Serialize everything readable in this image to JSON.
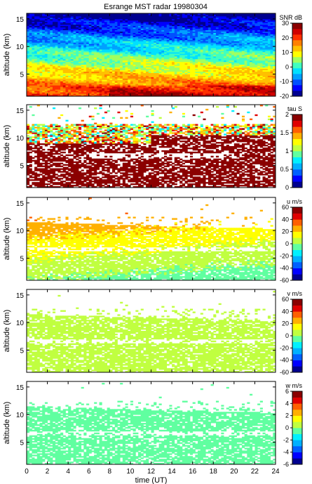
{
  "figure_title": "Esrange MST radar 19980304",
  "chart_data": [
    {
      "type": "heatmap",
      "title": "Esrange MST radar 19980304",
      "xlabel": "",
      "ylabel": "altitude (km)",
      "x_range": [
        0,
        24
      ],
      "y_range": [
        1,
        16
      ],
      "y_ticks": [
        "5",
        "10",
        "15"
      ],
      "colorbar_label": "SNR dB",
      "colorbar_range": [
        -20,
        30
      ],
      "colorbar_ticks": [
        "30",
        "20",
        "10",
        "0",
        "-10",
        "-20"
      ],
      "colorbar_colors": [
        "#00008f",
        "#0000ff",
        "#0050ff",
        "#00a0ff",
        "#00e0ff",
        "#40ffc0",
        "#a0ff60",
        "#ffff00",
        "#ffc000",
        "#ff8000",
        "#ff3000",
        "#d00000",
        "#8b0000"
      ],
      "pattern": "snr"
    },
    {
      "type": "heatmap",
      "xlabel": "",
      "ylabel": "altitude (km)",
      "x_range": [
        0,
        24
      ],
      "y_range": [
        1,
        16
      ],
      "y_ticks": [
        "5",
        "10",
        "15"
      ],
      "colorbar_label": "tau S",
      "colorbar_range": [
        0,
        2
      ],
      "colorbar_ticks": [
        "2",
        "1.5",
        "1",
        "0.5",
        "0"
      ],
      "colorbar_colors": [
        "#00008f",
        "#0000ff",
        "#0060ff",
        "#00b0ff",
        "#00f0ff",
        "#60ffa0",
        "#c0ff40",
        "#ffff00",
        "#ffb000",
        "#ff6000",
        "#e00000",
        "#8b0000"
      ],
      "pattern": "tau"
    },
    {
      "type": "heatmap",
      "xlabel": "",
      "ylabel": "altitude (km)",
      "x_range": [
        0,
        24
      ],
      "y_range": [
        1,
        16
      ],
      "y_ticks": [
        "5",
        "10",
        "15"
      ],
      "colorbar_label": "u m/s",
      "colorbar_range": [
        -60,
        60
      ],
      "colorbar_ticks": [
        "60",
        "40",
        "20",
        "0",
        "-20",
        "-40",
        "-60"
      ],
      "colorbar_colors": [
        "#00008f",
        "#0000ff",
        "#0060ff",
        "#00b0ff",
        "#00f0ff",
        "#60ffa0",
        "#c0ff40",
        "#ffff00",
        "#ffb000",
        "#ff6000",
        "#e00000",
        "#8b0000"
      ],
      "pattern": "u"
    },
    {
      "type": "heatmap",
      "xlabel": "",
      "ylabel": "altitude (km)",
      "x_range": [
        0,
        24
      ],
      "y_range": [
        1,
        16
      ],
      "y_ticks": [
        "5",
        "10",
        "15"
      ],
      "colorbar_label": "v m/s",
      "colorbar_range": [
        -60,
        60
      ],
      "colorbar_ticks": [
        "60",
        "40",
        "20",
        "0",
        "-20",
        "-40",
        "-60"
      ],
      "colorbar_colors": [
        "#00008f",
        "#0000ff",
        "#0060ff",
        "#00b0ff",
        "#00f0ff",
        "#60ffa0",
        "#c0ff40",
        "#ffff00",
        "#ffb000",
        "#ff6000",
        "#e00000",
        "#8b0000"
      ],
      "pattern": "v"
    },
    {
      "type": "heatmap",
      "xlabel": "time (UT)",
      "ylabel": "altitude (km)",
      "x_range": [
        0,
        24
      ],
      "x_ticks": [
        "0",
        "2",
        "4",
        "6",
        "8",
        "10",
        "12",
        "14",
        "16",
        "18",
        "20",
        "22",
        "24"
      ],
      "y_range": [
        1,
        16
      ],
      "y_ticks": [
        "5",
        "10",
        "15"
      ],
      "colorbar_label": "w m/s",
      "colorbar_range": [
        -6,
        6
      ],
      "colorbar_ticks": [
        "6",
        "4",
        "2",
        "0",
        "-2",
        "-4",
        "-6"
      ],
      "colorbar_colors": [
        "#00008f",
        "#0000ff",
        "#0060ff",
        "#00b0ff",
        "#00f0ff",
        "#60ffa0",
        "#c0ff40",
        "#ffff00",
        "#ffb000",
        "#ff6000",
        "#e00000",
        "#8b0000"
      ],
      "pattern": "w"
    }
  ]
}
